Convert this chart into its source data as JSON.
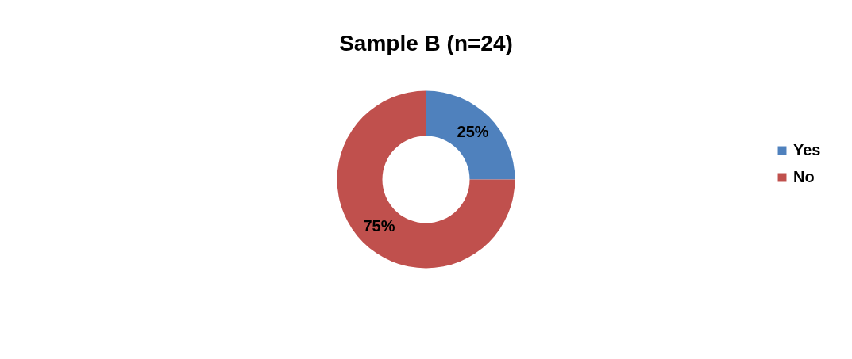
{
  "chart_data": {
    "type": "donut",
    "title": "Sample B (n=24)",
    "categories": [
      "Yes",
      "No"
    ],
    "values": [
      25,
      75
    ],
    "colors": [
      "#4f81bd",
      "#c0504d"
    ],
    "value_labels": [
      "25%",
      "75%"
    ],
    "legend": "right"
  }
}
